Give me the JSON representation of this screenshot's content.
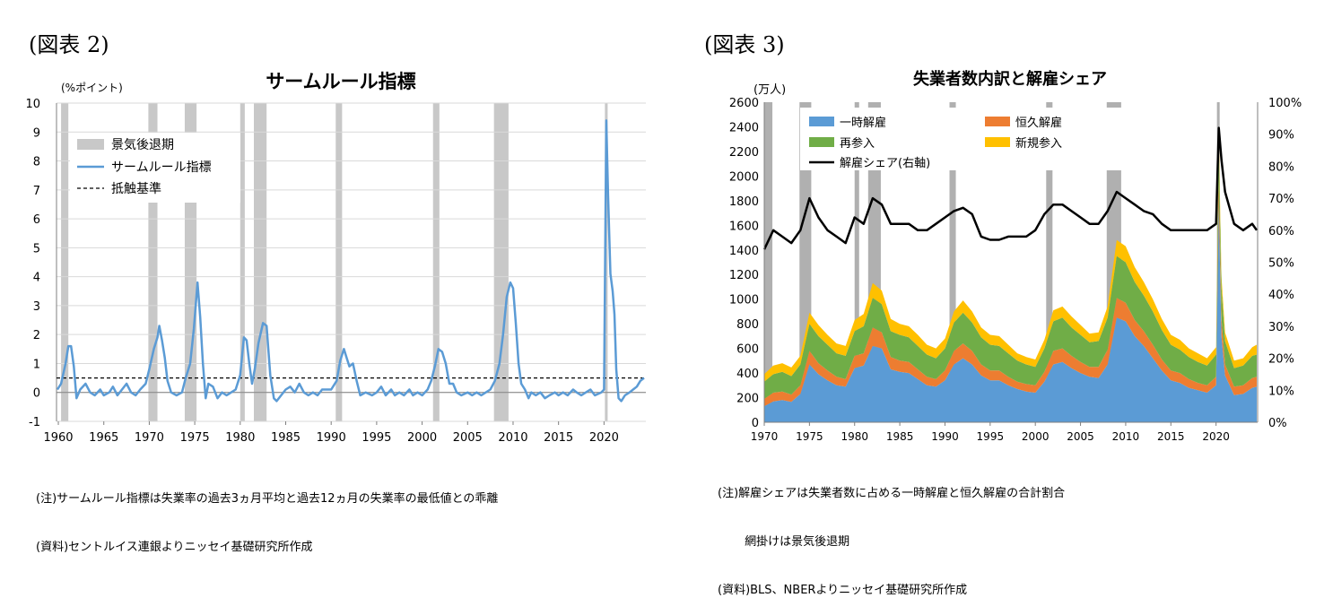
{
  "left": {
    "panel_label": "(図表 2)",
    "note_lines": [
      "(注)サームルール指標は失業率の過去3ヵ月平均と過去12ヵ月の失業率の最低値との乖離",
      "(資料)セントルイス連銀よりニッセイ基礎研究所作成"
    ]
  },
  "right": {
    "panel_label": "(図表 3)",
    "note_lines": [
      "(注)解雇シェアは失業者数に占める一時解雇と恒久解雇の合計割合",
      "　　 網掛けは景気後退期",
      "(資料)BLS、NBERよりニッセイ基礎研究所作成"
    ]
  },
  "chart_data": [
    {
      "type": "line",
      "title": "サームルール指標",
      "ylabel": "(%ポイント)",
      "xlim": [
        1959.8,
        2024.6
      ],
      "ylim": [
        -1,
        10
      ],
      "x_ticks": [
        "1960",
        "1965",
        "1970",
        "1975",
        "1980",
        "1985",
        "1990",
        "1995",
        "2000",
        "2005",
        "2010",
        "2015",
        "2020"
      ],
      "y_ticks": [
        "10",
        "9",
        "8",
        "7",
        "6",
        "5",
        "4",
        "3",
        "2",
        "1",
        "0",
        "-1"
      ],
      "legend": [
        "景気後退期",
        "サームルール指標",
        "抵触基準"
      ],
      "legend_position": "top-left",
      "recessions": [
        [
          1960.3,
          1961.1
        ],
        [
          1969.9,
          1970.9
        ],
        [
          1973.9,
          1975.2
        ],
        [
          1980.0,
          1980.5
        ],
        [
          1981.5,
          1982.9
        ],
        [
          1990.5,
          1991.2
        ],
        [
          2001.2,
          2001.9
        ],
        [
          2007.9,
          2009.5
        ],
        [
          2020.1,
          2020.4
        ]
      ],
      "threshold": 0.5,
      "colors": {
        "line": "#5b9bd5",
        "recession": "#c8c8c8",
        "threshold": "#000000"
      },
      "series": [
        {
          "name": "サームルール指標",
          "points": [
            [
              1959.9,
              0.1
            ],
            [
              1960.3,
              0.3
            ],
            [
              1960.8,
              1.0
            ],
            [
              1961.1,
              1.6
            ],
            [
              1961.4,
              1.6
            ],
            [
              1961.7,
              0.9
            ],
            [
              1962.0,
              -0.2
            ],
            [
              1962.4,
              0.1
            ],
            [
              1963.0,
              0.3
            ],
            [
              1963.5,
              0.0
            ],
            [
              1964.0,
              -0.1
            ],
            [
              1964.6,
              0.1
            ],
            [
              1965.0,
              -0.1
            ],
            [
              1965.6,
              0.0
            ],
            [
              1966.0,
              0.2
            ],
            [
              1966.5,
              -0.1
            ],
            [
              1967.0,
              0.1
            ],
            [
              1967.5,
              0.3
            ],
            [
              1968.0,
              0.0
            ],
            [
              1968.5,
              -0.1
            ],
            [
              1969.0,
              0.1
            ],
            [
              1969.6,
              0.3
            ],
            [
              1970.0,
              0.8
            ],
            [
              1970.5,
              1.5
            ],
            [
              1970.9,
              1.9
            ],
            [
              1971.1,
              2.3
            ],
            [
              1971.4,
              1.8
            ],
            [
              1971.7,
              1.2
            ],
            [
              1972.0,
              0.4
            ],
            [
              1972.4,
              0.0
            ],
            [
              1973.0,
              -0.1
            ],
            [
              1973.6,
              0.0
            ],
            [
              1974.0,
              0.5
            ],
            [
              1974.5,
              1.0
            ],
            [
              1974.9,
              2.2
            ],
            [
              1975.3,
              3.8
            ],
            [
              1975.6,
              2.6
            ],
            [
              1975.9,
              1.0
            ],
            [
              1976.2,
              -0.2
            ],
            [
              1976.5,
              0.3
            ],
            [
              1977.0,
              0.2
            ],
            [
              1977.5,
              -0.2
            ],
            [
              1978.0,
              0.0
            ],
            [
              1978.5,
              -0.1
            ],
            [
              1979.0,
              0.0
            ],
            [
              1979.5,
              0.1
            ],
            [
              1980.0,
              0.6
            ],
            [
              1980.4,
              1.9
            ],
            [
              1980.7,
              1.8
            ],
            [
              1981.0,
              1.0
            ],
            [
              1981.3,
              0.3
            ],
            [
              1981.6,
              0.8
            ],
            [
              1982.0,
              1.7
            ],
            [
              1982.5,
              2.4
            ],
            [
              1982.9,
              2.3
            ],
            [
              1983.3,
              0.6
            ],
            [
              1983.7,
              -0.2
            ],
            [
              1984.0,
              -0.3
            ],
            [
              1984.5,
              -0.1
            ],
            [
              1985.0,
              0.1
            ],
            [
              1985.5,
              0.2
            ],
            [
              1986.0,
              0.0
            ],
            [
              1986.5,
              0.3
            ],
            [
              1987.0,
              0.0
            ],
            [
              1987.5,
              -0.1
            ],
            [
              1988.0,
              0.0
            ],
            [
              1988.5,
              -0.1
            ],
            [
              1989.0,
              0.1
            ],
            [
              1989.6,
              0.1
            ],
            [
              1990.0,
              0.1
            ],
            [
              1990.6,
              0.4
            ],
            [
              1991.0,
              1.1
            ],
            [
              1991.4,
              1.5
            ],
            [
              1991.7,
              1.2
            ],
            [
              1992.0,
              0.9
            ],
            [
              1992.4,
              1.0
            ],
            [
              1992.8,
              0.4
            ],
            [
              1993.2,
              -0.1
            ],
            [
              1993.8,
              0.0
            ],
            [
              1994.5,
              -0.1
            ],
            [
              1995.0,
              0.0
            ],
            [
              1995.5,
              0.2
            ],
            [
              1996.0,
              -0.1
            ],
            [
              1996.6,
              0.1
            ],
            [
              1997.0,
              -0.1
            ],
            [
              1997.5,
              0.0
            ],
            [
              1998.0,
              -0.1
            ],
            [
              1998.6,
              0.1
            ],
            [
              1999.0,
              -0.1
            ],
            [
              1999.5,
              0.0
            ],
            [
              2000.0,
              -0.1
            ],
            [
              2000.6,
              0.1
            ],
            [
              2001.0,
              0.4
            ],
            [
              2001.4,
              0.9
            ],
            [
              2001.8,
              1.5
            ],
            [
              2002.2,
              1.4
            ],
            [
              2002.6,
              1.0
            ],
            [
              2003.0,
              0.3
            ],
            [
              2003.4,
              0.3
            ],
            [
              2003.8,
              0.0
            ],
            [
              2004.3,
              -0.1
            ],
            [
              2005.0,
              0.0
            ],
            [
              2005.5,
              -0.1
            ],
            [
              2006.0,
              0.0
            ],
            [
              2006.5,
              -0.1
            ],
            [
              2007.0,
              0.0
            ],
            [
              2007.5,
              0.1
            ],
            [
              2008.0,
              0.4
            ],
            [
              2008.5,
              1.0
            ],
            [
              2008.9,
              2.0
            ],
            [
              2009.3,
              3.3
            ],
            [
              2009.7,
              3.8
            ],
            [
              2010.0,
              3.6
            ],
            [
              2010.3,
              2.4
            ],
            [
              2010.6,
              1.0
            ],
            [
              2010.9,
              0.3
            ],
            [
              2011.3,
              0.1
            ],
            [
              2011.7,
              -0.2
            ],
            [
              2012.0,
              0.0
            ],
            [
              2012.5,
              -0.1
            ],
            [
              2013.0,
              0.0
            ],
            [
              2013.5,
              -0.2
            ],
            [
              2014.0,
              -0.1
            ],
            [
              2014.6,
              0.0
            ],
            [
              2015.0,
              -0.1
            ],
            [
              2015.5,
              0.0
            ],
            [
              2016.0,
              -0.1
            ],
            [
              2016.6,
              0.1
            ],
            [
              2017.0,
              0.0
            ],
            [
              2017.5,
              -0.1
            ],
            [
              2018.0,
              0.0
            ],
            [
              2018.5,
              0.1
            ],
            [
              2019.0,
              -0.1
            ],
            [
              2019.7,
              0.0
            ],
            [
              2020.0,
              0.1
            ],
            [
              2020.25,
              9.4
            ],
            [
              2020.45,
              6.8
            ],
            [
              2020.7,
              4.1
            ],
            [
              2020.95,
              3.5
            ],
            [
              2021.15,
              2.7
            ],
            [
              2021.35,
              0.8
            ],
            [
              2021.6,
              -0.2
            ],
            [
              2021.9,
              -0.3
            ],
            [
              2022.3,
              -0.1
            ],
            [
              2022.8,
              0.0
            ],
            [
              2023.2,
              0.1
            ],
            [
              2023.6,
              0.2
            ],
            [
              2024.0,
              0.4
            ],
            [
              2024.4,
              0.5
            ]
          ]
        }
      ]
    },
    {
      "type": "area",
      "title": "失業者数内訳と解雇シェア",
      "ylabel": "(万人)",
      "xlim": [
        1970,
        2024.6
      ],
      "ylim": [
        0,
        2600
      ],
      "y2lim": [
        0,
        100
      ],
      "x_ticks": [
        "1970",
        "1975",
        "1980",
        "1985",
        "1990",
        "1995",
        "2000",
        "2005",
        "2010",
        "2015",
        "2020"
      ],
      "y_ticks": [
        "2600",
        "2400",
        "2200",
        "2000",
        "1800",
        "1600",
        "1400",
        "1200",
        "1000",
        "800",
        "600",
        "400",
        "200",
        "0"
      ],
      "y2_ticks": [
        "100%",
        "90%",
        "80%",
        "70%",
        "60%",
        "50%",
        "40%",
        "30%",
        "20%",
        "10%",
        "0%"
      ],
      "legend": [
        "一時解雇",
        "恒久解雇",
        "再参入",
        "新規参入",
        "解雇シェア(右軸)"
      ],
      "legend_position": "top",
      "recessions": [
        [
          1970.0,
          1970.9
        ],
        [
          1973.9,
          1975.2
        ],
        [
          1980.0,
          1980.5
        ],
        [
          1981.5,
          1982.9
        ],
        [
          1990.5,
          1991.2
        ],
        [
          2001.2,
          2001.9
        ],
        [
          2007.9,
          2009.5
        ],
        [
          2020.1,
          2020.4
        ]
      ],
      "colors": {
        "一時解雇": "#5b9bd5",
        "恒久解雇": "#ed7d31",
        "再参入": "#70ad47",
        "新規参入": "#ffc000",
        "解雇シェア(右軸)": "#000000",
        "recession": "#b0b0b0"
      },
      "x": [
        1970,
        1971,
        1972,
        1973,
        1974,
        1975,
        1976,
        1977,
        1978,
        1979,
        1980,
        1981,
        1982,
        1983,
        1984,
        1985,
        1986,
        1987,
        1988,
        1989,
        1990,
        1991,
        1992,
        1993,
        1994,
        1995,
        1996,
        1997,
        1998,
        1999,
        2000,
        2001,
        2002,
        2003,
        2004,
        2005,
        2006,
        2007,
        2008,
        2009,
        2010,
        2011,
        2012,
        2013,
        2014,
        2015,
        2016,
        2017,
        2018,
        2019,
        2020,
        2020.3,
        2020.6,
        2021,
        2022,
        2023,
        2024,
        2024.5
      ],
      "series": [
        {
          "name": "一時解雇",
          "values": [
            130,
            170,
            180,
            165,
            230,
            470,
            390,
            340,
            300,
            290,
            440,
            460,
            620,
            600,
            430,
            410,
            400,
            350,
            300,
            290,
            340,
            470,
            520,
            470,
            380,
            340,
            340,
            300,
            270,
            250,
            240,
            330,
            470,
            490,
            440,
            400,
            370,
            360,
            470,
            850,
            820,
            700,
            620,
            520,
            420,
            340,
            320,
            280,
            260,
            240,
            300,
            1750,
            700,
            380,
            220,
            230,
            280,
            290
          ]
        },
        {
          "name": "恒久解雇",
          "values": [
            60,
            70,
            70,
            60,
            70,
            110,
            90,
            80,
            70,
            60,
            100,
            100,
            150,
            130,
            100,
            90,
            90,
            80,
            70,
            60,
            80,
            110,
            120,
            110,
            90,
            80,
            80,
            70,
            60,
            60,
            60,
            80,
            110,
            110,
            100,
            90,
            80,
            90,
            120,
            160,
            150,
            130,
            120,
            110,
            90,
            80,
            80,
            70,
            60,
            60,
            70,
            200,
            140,
            90,
            70,
            70,
            80,
            80
          ]
        },
        {
          "name": "再参入",
          "values": [
            140,
            150,
            160,
            150,
            170,
            220,
            220,
            210,
            190,
            190,
            200,
            220,
            240,
            230,
            210,
            210,
            200,
            190,
            180,
            170,
            180,
            230,
            250,
            230,
            220,
            210,
            200,
            190,
            170,
            160,
            150,
            190,
            240,
            250,
            230,
            220,
            200,
            210,
            260,
            340,
            330,
            310,
            290,
            270,
            240,
            210,
            190,
            180,
            170,
            160,
            180,
            300,
            260,
            190,
            150,
            160,
            180,
            180
          ]
        },
        {
          "name": "新規参入",
          "values": [
            60,
            70,
            70,
            70,
            70,
            90,
            90,
            80,
            80,
            80,
            90,
            100,
            120,
            110,
            100,
            90,
            90,
            90,
            80,
            80,
            80,
            90,
            100,
            90,
            80,
            80,
            80,
            70,
            60,
            60,
            60,
            70,
            90,
            90,
            90,
            80,
            70,
            70,
            90,
            130,
            130,
            120,
            110,
            100,
            90,
            80,
            80,
            70,
            70,
            60,
            60,
            90,
            80,
            70,
            60,
            60,
            70,
            80
          ]
        },
        {
          "name": "解雇シェア(右軸)",
          "values": [
            54,
            60,
            58,
            56,
            60,
            70,
            64,
            60,
            58,
            56,
            64,
            62,
            70,
            68,
            62,
            62,
            62,
            60,
            60,
            62,
            64,
            66,
            67,
            65,
            58,
            57,
            57,
            58,
            58,
            58,
            60,
            65,
            68,
            68,
            66,
            64,
            62,
            62,
            66,
            72,
            70,
            68,
            66,
            65,
            62,
            60,
            60,
            60,
            60,
            60,
            62,
            92,
            82,
            72,
            62,
            60,
            62,
            60
          ]
        }
      ]
    }
  ]
}
